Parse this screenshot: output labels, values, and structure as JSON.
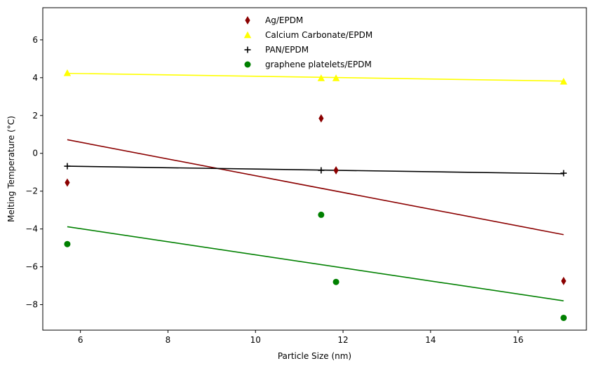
{
  "chart_data": {
    "type": "scatter",
    "title": "",
    "xlabel": "Particle Size (nm)",
    "ylabel": "Melting Temperature (°C)",
    "xlim": [
      5.14,
      17.56
    ],
    "ylim": [
      -9.35,
      7.7
    ],
    "xticks": [
      6,
      8,
      10,
      12,
      14,
      16
    ],
    "yticks": [
      -8,
      -6,
      -4,
      -2,
      0,
      2,
      4,
      6
    ],
    "xtick_labels": [
      "6",
      "8",
      "10",
      "12",
      "14",
      "16"
    ],
    "ytick_labels": [
      "−8",
      "−6",
      "−4",
      "−2",
      "0",
      "2",
      "4",
      "6"
    ],
    "grid": false,
    "legend_position": "upper-center",
    "series": [
      {
        "name": "Ag/EPDM",
        "marker": "thin-diamond",
        "color": "#8b0000",
        "x": [
          5.7,
          11.5,
          11.84,
          17.04
        ],
        "y": [
          -1.55,
          1.85,
          -0.9,
          -6.75
        ],
        "fit": {
          "x": [
            5.7,
            17.04
          ],
          "y": [
            0.72,
            -4.3
          ]
        }
      },
      {
        "name": "Calcium Carbonate/EPDM",
        "marker": "triangle",
        "color": "#ffff00",
        "x": [
          5.7,
          11.5,
          11.84,
          17.04
        ],
        "y": [
          4.25,
          3.98,
          3.98,
          3.8
        ],
        "fit": {
          "x": [
            5.7,
            17.04
          ],
          "y": [
            4.23,
            3.82
          ]
        }
      },
      {
        "name": "PAN/EPDM",
        "marker": "plus",
        "color": "#000000",
        "x": [
          5.7,
          11.5,
          17.04
        ],
        "y": [
          -0.68,
          -0.9,
          -1.05
        ],
        "fit": {
          "x": [
            5.7,
            17.04
          ],
          "y": [
            -0.68,
            -1.08
          ]
        }
      },
      {
        "name": "graphene platelets/EPDM",
        "marker": "circle",
        "color": "#008000",
        "x": [
          5.7,
          11.5,
          11.84,
          17.04
        ],
        "y": [
          -4.8,
          -3.25,
          -6.8,
          -8.7
        ],
        "fit": {
          "x": [
            5.7,
            17.04
          ],
          "y": [
            -3.88,
            -7.8
          ]
        }
      }
    ]
  }
}
